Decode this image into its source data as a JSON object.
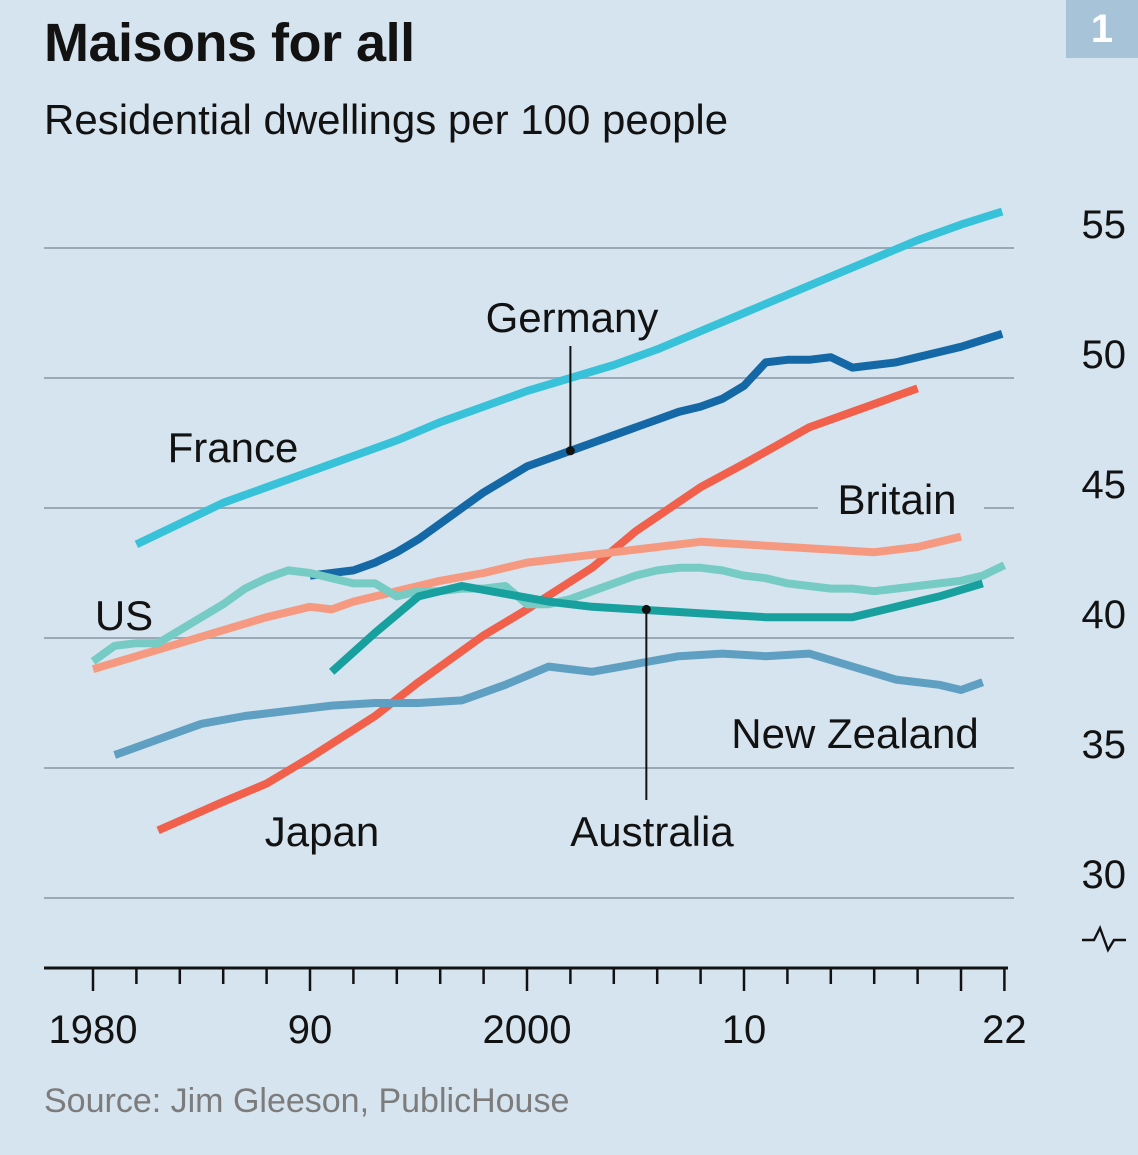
{
  "title": "Maisons for all",
  "subtitle": "Residential dwellings per 100 people",
  "chart_number": "1",
  "source": "Source: Jim Gleeson, PublicHouse",
  "colors": {
    "background": "#d6e4ef",
    "gridline": "#9aa9b5",
    "axis": "#121212",
    "France": "#38c2d9",
    "Germany": "#1368a5",
    "Japan": "#f0604b",
    "Britain": "#f59a80",
    "US": "#76ccc4",
    "Australia": "#18a09f",
    "New Zealand": "#5f9fc2"
  },
  "chart_data": {
    "type": "line",
    "title": "Maisons for all",
    "subtitle": "Residential dwellings per 100 people",
    "xlabel": "",
    "ylabel": "",
    "xlim": [
      1979.5,
      2022
    ],
    "ylim": [
      28.2,
      55
    ],
    "y_axis_break": true,
    "y_axis_side": "right",
    "yticks": [
      30,
      35,
      40,
      45,
      50,
      55
    ],
    "xticks": [
      1980,
      1982,
      1984,
      1986,
      1988,
      1990,
      1992,
      1994,
      1996,
      1998,
      2000,
      2002,
      2004,
      2006,
      2008,
      2010,
      2012,
      2014,
      2016,
      2018,
      2020,
      2022
    ],
    "xtick_labels": [
      {
        "value": 1980,
        "label": "1980"
      },
      {
        "value": 1990,
        "label": "90"
      },
      {
        "value": 2000,
        "label": "2000"
      },
      {
        "value": 2010,
        "label": "10"
      },
      {
        "value": 2022,
        "label": "22"
      }
    ],
    "series": [
      {
        "name": "France",
        "label": "France",
        "x": [
          1982,
          1984,
          1986,
          1988,
          1990,
          1992,
          1994,
          1996,
          1998,
          2000,
          2002,
          2004,
          2006,
          2008,
          2010,
          2012,
          2014,
          2016,
          2018,
          2020,
          2021.9
        ],
        "values": [
          43.6,
          44.4,
          45.2,
          45.8,
          46.4,
          47,
          47.6,
          48.3,
          48.9,
          49.5,
          50,
          50.5,
          51.1,
          51.8,
          52.5,
          53.2,
          53.9,
          54.6,
          55.3,
          55.9,
          56.4
        ]
      },
      {
        "name": "Germany",
        "label": "Germany",
        "x": [
          1990,
          1991,
          1992,
          1993,
          1994,
          1995,
          1996,
          1997,
          1998,
          1999,
          2000,
          2001,
          2002,
          2003,
          2004,
          2005,
          2006,
          2007,
          2008,
          2009,
          2010,
          2011,
          2012,
          2013,
          2014,
          2015,
          2016,
          2017,
          2018,
          2019,
          2020,
          2021.9
        ],
        "values": [
          42.4,
          42.5,
          42.6,
          42.9,
          43.3,
          43.8,
          44.4,
          45.0,
          45.6,
          46.1,
          46.6,
          46.9,
          47.2,
          47.5,
          47.8,
          48.1,
          48.4,
          48.7,
          48.9,
          49.2,
          49.7,
          50.6,
          50.7,
          50.7,
          50.8,
          50.4,
          50.5,
          50.6,
          50.8,
          51.0,
          51.2,
          51.7
        ]
      },
      {
        "name": "Japan",
        "label": "Japan",
        "x": [
          1983,
          1986,
          1988,
          1990,
          1993,
          1995,
          1998,
          2000,
          2003,
          2005,
          2008,
          2010,
          2013,
          2015,
          2018
        ],
        "values": [
          32.6,
          33.7,
          34.4,
          35.4,
          37,
          38.3,
          40.1,
          41.1,
          42.7,
          44.1,
          45.8,
          46.7,
          48.1,
          48.7,
          49.6
        ]
      },
      {
        "name": "Britain",
        "label": "Britain",
        "x": [
          1980,
          1982,
          1984,
          1986,
          1988,
          1990,
          1991,
          1992,
          1994,
          1996,
          1998,
          2000,
          2002,
          2004,
          2006,
          2008,
          2010,
          2012,
          2014,
          2016,
          2018,
          2020
        ],
        "values": [
          38.8,
          39.3,
          39.8,
          40.3,
          40.8,
          41.2,
          41.1,
          41.4,
          41.8,
          42.2,
          42.5,
          42.9,
          43.1,
          43.3,
          43.5,
          43.7,
          43.6,
          43.5,
          43.4,
          43.3,
          43.5,
          43.9
        ]
      },
      {
        "name": "US",
        "label": "US",
        "x": [
          1980,
          1981,
          1982,
          1983,
          1984,
          1985,
          1986,
          1987,
          1988,
          1989,
          1990,
          1991,
          1992,
          1993,
          1994,
          1995,
          1996,
          1997,
          1998,
          1999,
          2000,
          2001,
          2002,
          2003,
          2004,
          2005,
          2006,
          2007,
          2008,
          2009,
          2010,
          2011,
          2012,
          2013,
          2014,
          2015,
          2016,
          2017,
          2018,
          2019,
          2020,
          2021,
          2022
        ],
        "values": [
          39.1,
          39.7,
          39.8,
          39.8,
          40.3,
          40.8,
          41.3,
          41.9,
          42.3,
          42.6,
          42.5,
          42.3,
          42.1,
          42.1,
          41.6,
          41.8,
          41.8,
          41.9,
          41.9,
          42.0,
          41.3,
          41.3,
          41.5,
          41.8,
          42.1,
          42.4,
          42.6,
          42.7,
          42.7,
          42.6,
          42.4,
          42.3,
          42.1,
          42.0,
          41.9,
          41.9,
          41.8,
          41.9,
          42.0,
          42.1,
          42.2,
          42.4,
          42.8
        ]
      },
      {
        "name": "Australia",
        "label": "Australia",
        "x": [
          1991,
          1993,
          1995,
          1997,
          1999,
          2001,
          2003,
          2005,
          2007,
          2009,
          2011,
          2013,
          2015,
          2017,
          2019,
          2021
        ],
        "values": [
          38.7,
          40.2,
          41.6,
          42.0,
          41.7,
          41.4,
          41.2,
          41.1,
          41.0,
          40.9,
          40.8,
          40.8,
          40.8,
          41.2,
          41.6,
          42.1
        ]
      },
      {
        "name": "New Zealand",
        "label": "New Zealand",
        "x": [
          1981,
          1983,
          1985,
          1987,
          1989,
          1991,
          1993,
          1995,
          1997,
          1999,
          2001,
          2003,
          2005,
          2007,
          2009,
          2011,
          2013,
          2015,
          2017,
          2019,
          2020,
          2021
        ],
        "values": [
          35.5,
          36.1,
          36.7,
          37.0,
          37.2,
          37.4,
          37.5,
          37.5,
          37.6,
          38.2,
          38.9,
          38.7,
          39.0,
          39.3,
          39.4,
          39.3,
          39.4,
          38.9,
          38.4,
          38.2,
          38.0,
          38.3
        ]
      }
    ],
    "annotations": [
      {
        "series": "Germany",
        "text": "Germany",
        "pointer_x": 2002,
        "pointer_y": 47.2
      },
      {
        "series": "Australia",
        "text": "Australia",
        "pointer_x": 2005.5,
        "pointer_y": 41.1
      }
    ]
  }
}
